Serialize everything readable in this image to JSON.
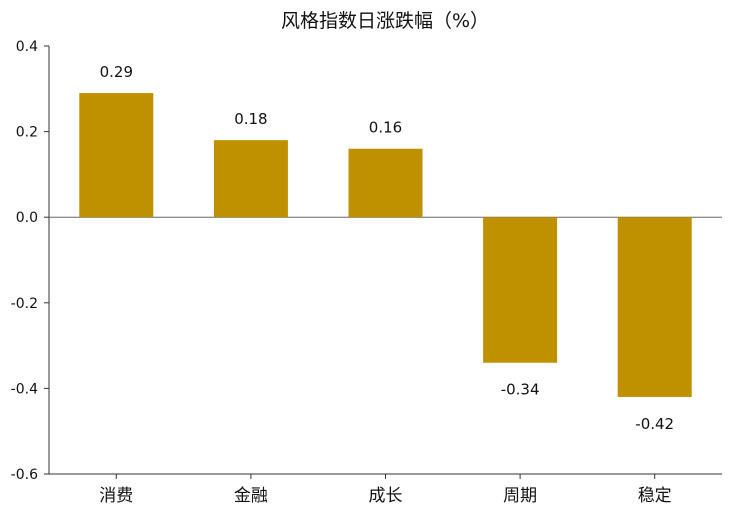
{
  "chart_data": {
    "type": "bar",
    "title": "风格指数日涨跌幅（%）",
    "categories": [
      "消费",
      "金融",
      "成长",
      "周期",
      "稳定"
    ],
    "values": [
      0.29,
      0.18,
      0.16,
      -0.34,
      -0.42
    ],
    "data_labels": [
      "0.29",
      "0.18",
      "0.16",
      "-0.34",
      "-0.42"
    ],
    "ylim": [
      -0.6,
      0.4
    ],
    "yticks": [
      0.4,
      0.2,
      0.0,
      -0.2,
      -0.4,
      -0.6
    ],
    "ytick_labels": [
      "0.4",
      "0.2",
      "0.0",
      "-0.2",
      "-0.4",
      "-0.6"
    ],
    "xlabel": "",
    "ylabel": "",
    "grid": false,
    "legend": "none",
    "bar_color": "#BF9000"
  }
}
